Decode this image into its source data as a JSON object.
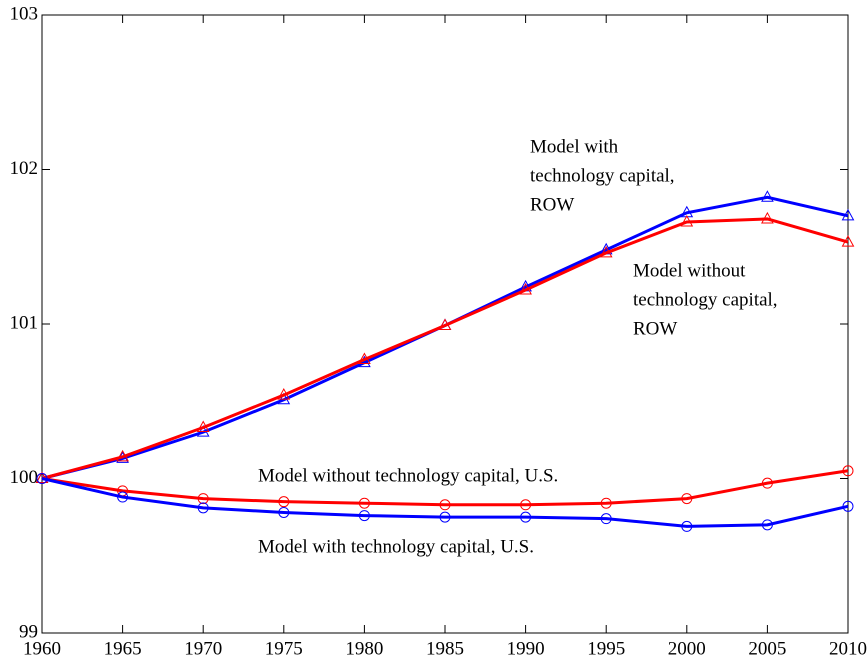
{
  "chart_data": {
    "type": "line",
    "x": [
      1960,
      1965,
      1970,
      1975,
      1980,
      1985,
      1990,
      1995,
      2000,
      2005,
      2010
    ],
    "series": [
      {
        "color": "#0000ff",
        "marker": "triangle",
        "values": [
          100,
          100.13,
          100.3,
          100.51,
          100.75,
          100.99,
          101.24,
          101.48,
          101.72,
          101.82,
          101.7
        ]
      },
      {
        "color": "#ff0000",
        "marker": "triangle",
        "values": [
          100,
          100.14,
          100.33,
          100.54,
          100.77,
          100.99,
          101.22,
          101.46,
          101.66,
          101.68,
          101.53
        ]
      },
      {
        "color": "#ff0000",
        "marker": "circle",
        "values": [
          100,
          99.92,
          99.87,
          99.85,
          99.84,
          99.83,
          99.83,
          99.84,
          99.87,
          99.97,
          100.05
        ]
      },
      {
        "color": "#0000ff",
        "marker": "circle",
        "values": [
          100,
          99.88,
          99.81,
          99.78,
          99.76,
          99.75,
          99.75,
          99.74,
          99.69,
          99.7,
          99.82
        ]
      }
    ],
    "annotations": [
      {
        "lines": [
          "Model with",
          "technology capital,",
          "ROW"
        ]
      },
      {
        "lines": [
          "Model without",
          "technology capital,",
          "ROW"
        ]
      },
      {
        "lines": [
          "Model without technology capital, U.S."
        ]
      },
      {
        "lines": [
          "Model with technology capital, U.S."
        ]
      }
    ],
    "xlim": [
      1960,
      2010
    ],
    "xticks": [
      1960,
      1965,
      1970,
      1975,
      1980,
      1985,
      1990,
      1995,
      2000,
      2005,
      2010
    ],
    "ylim": [
      99,
      103
    ],
    "yticks": [
      99,
      100,
      101,
      102,
      103
    ]
  }
}
